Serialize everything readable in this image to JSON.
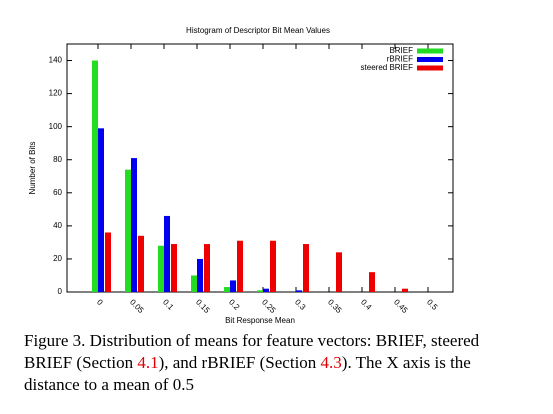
{
  "chart_data": {
    "type": "bar",
    "title": "Histogram of Descriptor Bit Mean Values",
    "x_label": "Bit Response Mean",
    "y_label": "Number of Bits",
    "categories": [
      "0",
      "0.05",
      "0.1",
      "0.15",
      "0.2",
      "0.25",
      "0.3",
      "0.35",
      "0.4",
      "0.45",
      "0.5"
    ],
    "series": [
      {
        "name": "BRIEF",
        "color": "#22dd22",
        "values": [
          140,
          74,
          28,
          10,
          3,
          1,
          0,
          0,
          0,
          0,
          0
        ]
      },
      {
        "name": "rBRIEF",
        "color": "#0000ee",
        "values": [
          99,
          81,
          46,
          20,
          7,
          2,
          1,
          0,
          0,
          0,
          0
        ]
      },
      {
        "name": "steered BRIEF",
        "color": "#ee0000",
        "values": [
          36,
          34,
          29,
          29,
          31,
          31,
          29,
          24,
          12,
          2,
          0
        ]
      }
    ],
    "ylim": [
      0,
      150
    ],
    "yticks": [
      0,
      20,
      40,
      60,
      80,
      100,
      120,
      140
    ],
    "legend": "upper right"
  },
  "caption": {
    "parts": [
      "Figure 3. Distribution of means for feature vectors: BRIEF, steered BRIEF (Section ",
      "4.1",
      "), and rBRIEF (Section ",
      "4.3",
      "). The X axis is the distance to a mean of 0.5"
    ]
  }
}
